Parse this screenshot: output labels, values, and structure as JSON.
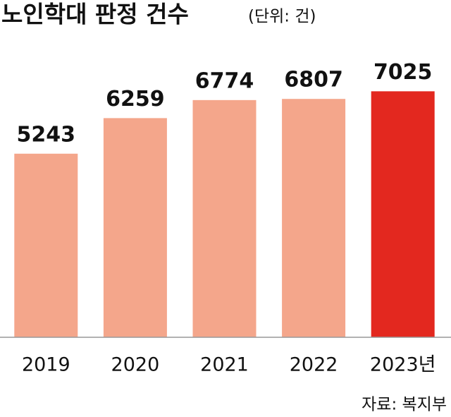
{
  "chart_data": {
    "type": "bar",
    "title": "노인학대 판정 건수",
    "subtitle": "(단위: 건)",
    "categories": [
      "2019",
      "2020",
      "2021",
      "2022",
      "2023년"
    ],
    "values": [
      5243,
      6259,
      6774,
      6807,
      7025
    ],
    "colors": [
      "#f4a68b",
      "#f4a68b",
      "#f4a68b",
      "#f4a68b",
      "#e3281f"
    ],
    "ylim": [
      0,
      8000
    ],
    "source": "자료: 복지부"
  }
}
